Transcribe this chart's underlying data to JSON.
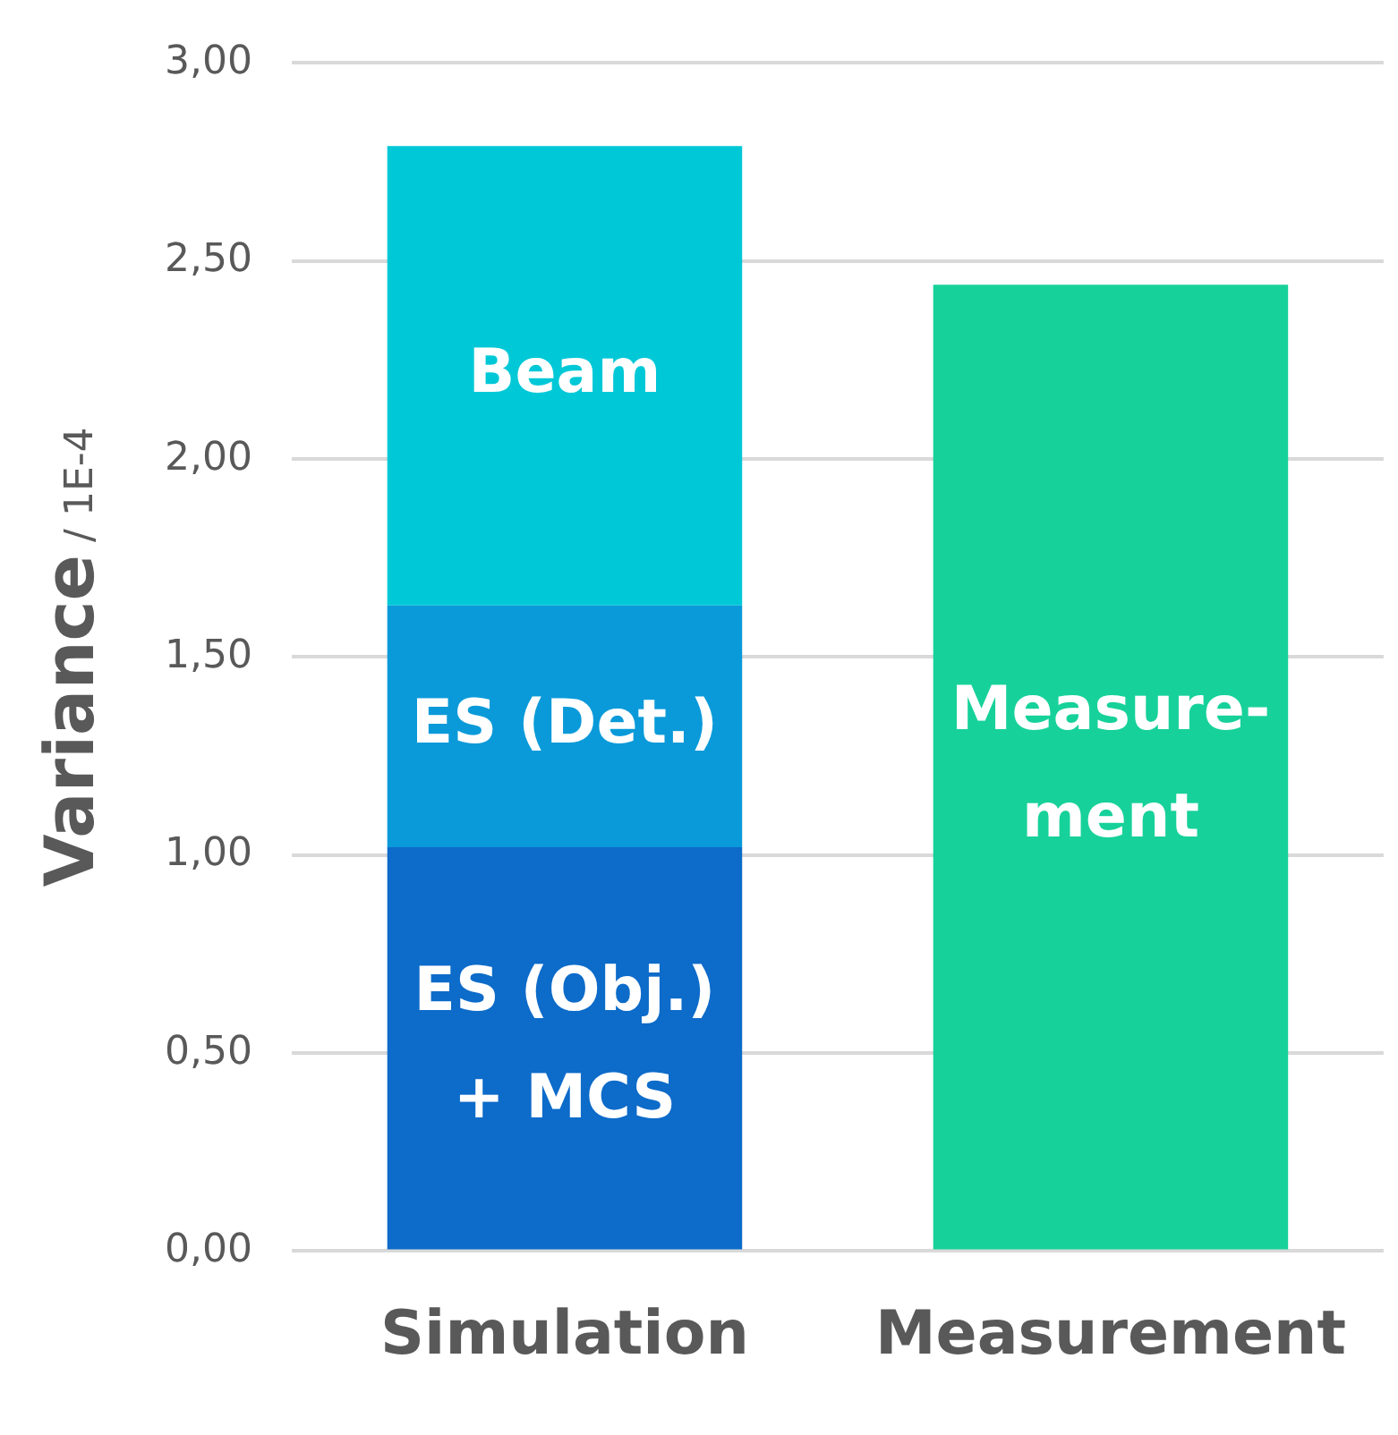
{
  "chart_data": {
    "type": "bar",
    "stacked": true,
    "ylabel": "Variance / 1E-4",
    "categories": [
      "Simulation",
      "Measurement"
    ],
    "series": [
      {
        "name": "ES (Obj.) + MCS",
        "color": "#0d6bc9",
        "values": [
          1.02,
          null
        ]
      },
      {
        "name": "ES (Det.)",
        "color": "#0a9ad9",
        "values": [
          0.61,
          null
        ]
      },
      {
        "name": "Beam",
        "color": "#00c8d7",
        "values": [
          1.16,
          null
        ]
      },
      {
        "name": "Measure-ment",
        "color": "#17d19a",
        "values": [
          null,
          2.44
        ]
      }
    ],
    "ylim": [
      0,
      3
    ],
    "yticks": [
      {
        "value": 0,
        "label": "0,00"
      },
      {
        "value": 0.5,
        "label": "0,50"
      },
      {
        "value": 1,
        "label": "1,00"
      },
      {
        "value": 1.5,
        "label": "1,50"
      },
      {
        "value": 2,
        "label": "2,00"
      },
      {
        "value": 2.5,
        "label": "2,50"
      },
      {
        "value": 3,
        "label": "3,00"
      }
    ],
    "grid": "y",
    "legend": false
  }
}
